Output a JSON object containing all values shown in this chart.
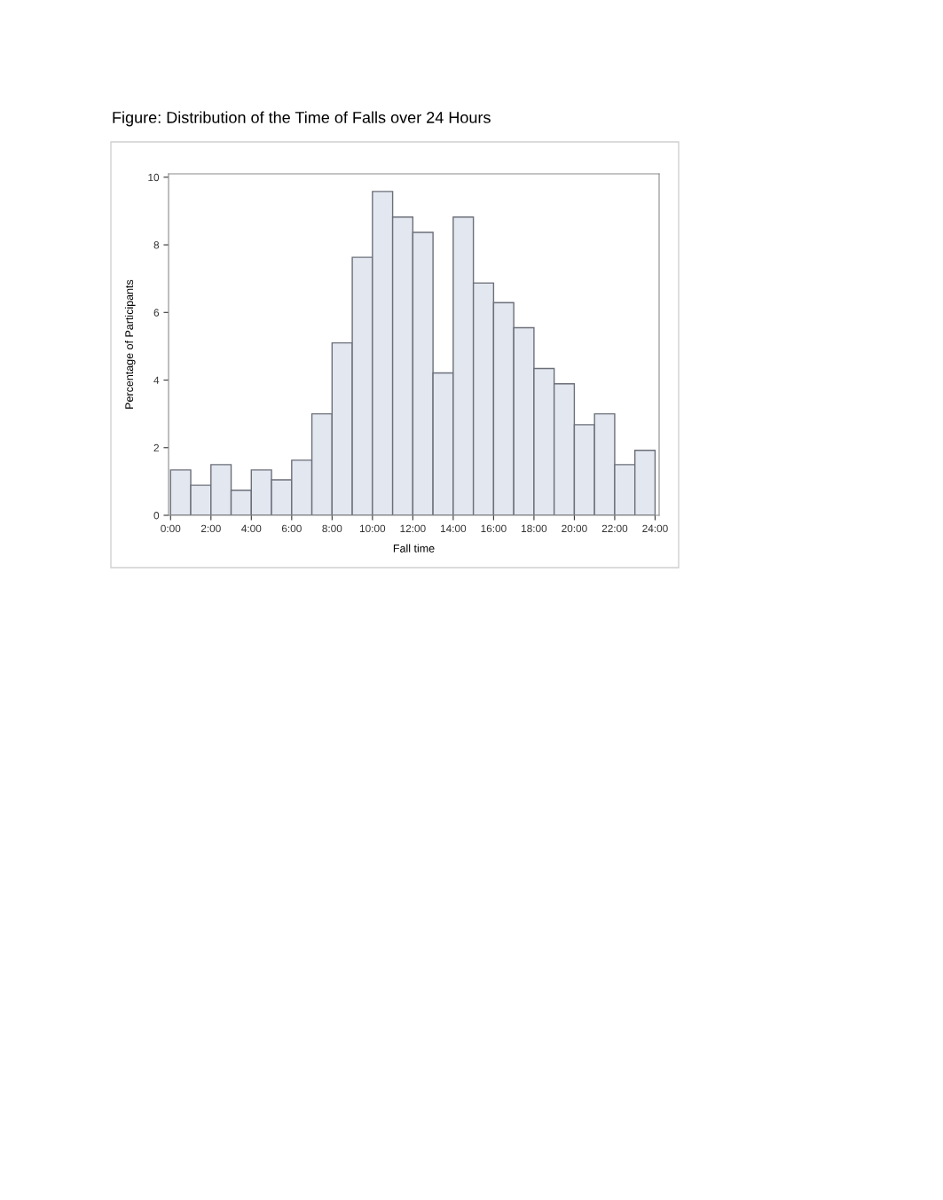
{
  "chart_data": {
    "type": "histogram",
    "title": "Figure: Distribution of the Time of Falls over 24 Hours",
    "xlabel": "Fall time",
    "ylabel": "Percentage of Participants",
    "bins": [
      0,
      1,
      2,
      3,
      4,
      5,
      6,
      7,
      8,
      9,
      10,
      11,
      12,
      13,
      14,
      15,
      16,
      17,
      18,
      19,
      20,
      21,
      22,
      23,
      24
    ],
    "values": [
      1.34,
      0.89,
      1.5,
      0.74,
      1.34,
      1.05,
      1.63,
      3.0,
      5.1,
      7.63,
      9.58,
      8.82,
      8.37,
      4.21,
      8.82,
      6.87,
      6.29,
      5.55,
      4.34,
      3.89,
      2.68,
      3.0,
      1.5,
      1.92
    ],
    "color": "#e3e7f0",
    "xlim": [
      -0.1,
      24.2
    ],
    "ylim": [
      0,
      10.1
    ],
    "xticks": [
      {
        "value": 0,
        "label": "0:00"
      },
      {
        "value": 2,
        "label": "2:00"
      },
      {
        "value": 4,
        "label": "4:00"
      },
      {
        "value": 6,
        "label": "6:00"
      },
      {
        "value": 8,
        "label": "8:00"
      },
      {
        "value": 10,
        "label": "10:00"
      },
      {
        "value": 12,
        "label": "12:00"
      },
      {
        "value": 14,
        "label": "14:00"
      },
      {
        "value": 16,
        "label": "16:00"
      },
      {
        "value": 18,
        "label": "18:00"
      },
      {
        "value": 20,
        "label": "20:00"
      },
      {
        "value": 22,
        "label": "22:00"
      },
      {
        "value": 24,
        "label": "24:00"
      }
    ],
    "yticks": [
      0,
      2,
      4,
      6,
      8,
      10
    ],
    "grid": false
  }
}
